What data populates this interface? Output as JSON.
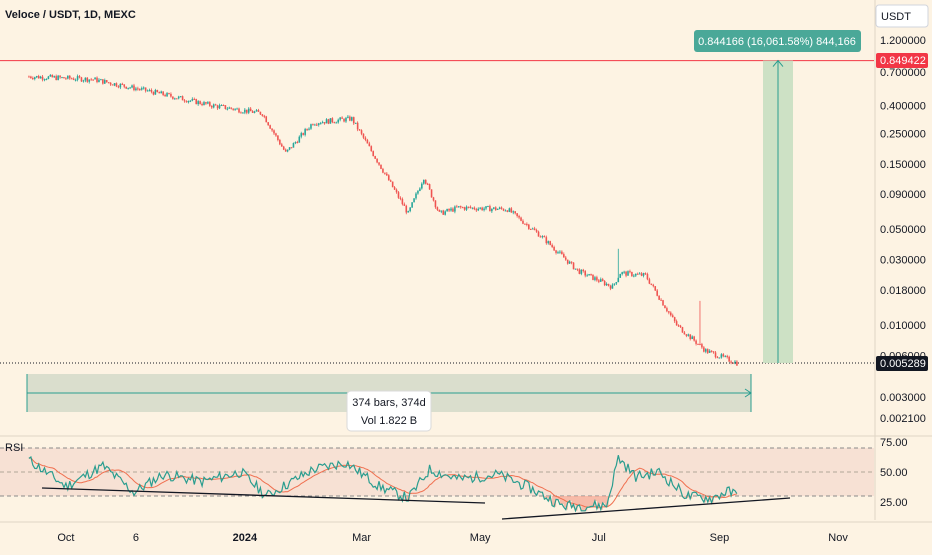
{
  "header": {
    "title": "Veloce / USDT, 1D, MEXC",
    "currency_button": "USDT"
  },
  "colors": {
    "background": "#fdf3e3",
    "up": "#26a69a",
    "down": "#ef5350",
    "hline": "#f23645",
    "measure_fill": "#c8dfc1",
    "measure_line": "#2a9d8f",
    "range_fill": "#d8dccb",
    "rsi": "#2a9d8f",
    "rsi_ma": "#f07050",
    "rsi_band": "#f5dccf",
    "trendline": "#131722"
  },
  "chart_data": [
    {
      "type": "candlestick",
      "title": "Veloce / USDT, 1D, MEXC",
      "scale": "log",
      "ylim": [
        0.0019,
        1.35
      ],
      "y_ticks": [
        "1.200000",
        "0.700000",
        "0.400000",
        "0.250000",
        "0.150000",
        "0.090000",
        "0.050000",
        "0.030000",
        "0.018000",
        "0.010000",
        "0.006000",
        "0.003000",
        "0.002100"
      ],
      "x_ticks": [
        "Oct",
        "6",
        "2024",
        "Mar",
        "May",
        "Jul",
        "Sep",
        "Nov"
      ],
      "price_anchors": [
        {
          "date": "2023-09-12",
          "price": 0.65
        },
        {
          "date": "2023-10-15",
          "price": 0.62
        },
        {
          "date": "2023-11-15",
          "price": 0.5
        },
        {
          "date": "2023-12-15",
          "price": 0.4
        },
        {
          "date": "2024-01-10",
          "price": 0.35
        },
        {
          "date": "2024-01-22",
          "price": 0.18
        },
        {
          "date": "2024-02-05",
          "price": 0.3
        },
        {
          "date": "2024-02-25",
          "price": 0.32
        },
        {
          "date": "2024-03-10",
          "price": 0.15
        },
        {
          "date": "2024-03-25",
          "price": 0.065
        },
        {
          "date": "2024-04-02",
          "price": 0.12
        },
        {
          "date": "2024-04-10",
          "price": 0.065
        },
        {
          "date": "2024-04-20",
          "price": 0.072
        },
        {
          "date": "2024-05-15",
          "price": 0.07
        },
        {
          "date": "2024-06-01",
          "price": 0.045
        },
        {
          "date": "2024-06-20",
          "price": 0.025
        },
        {
          "date": "2024-07-08",
          "price": 0.019
        },
        {
          "date": "2024-07-12",
          "price": 0.024
        },
        {
          "date": "2024-07-25",
          "price": 0.023
        },
        {
          "date": "2024-08-10",
          "price": 0.01
        },
        {
          "date": "2024-08-25",
          "price": 0.0065
        },
        {
          "date": "2024-09-10",
          "price": 0.0053
        }
      ],
      "spikes": [
        {
          "date": "2023-09-11",
          "high": 0.85
        },
        {
          "date": "2024-07-11",
          "high": 0.036
        },
        {
          "date": "2024-08-22",
          "high": 0.015
        }
      ],
      "horizontal_line": {
        "label": "0.849422",
        "value": 0.849422
      },
      "last_price": {
        "label": "0.005289",
        "value": 0.005289
      },
      "measure": {
        "label": "0.844166 (16,061.58%) 844,166"
      },
      "range_stats": {
        "bars": "374 bars, 374d",
        "volume": "Vol 1.822 B"
      }
    },
    {
      "type": "line",
      "name": "RSI",
      "legend": "RSI",
      "ylim": [
        16,
        80
      ],
      "y_ticks": [
        "75.00",
        "50.00",
        "25.00"
      ],
      "band": [
        30,
        70
      ],
      "rsi_anchors": [
        {
          "date": "2023-09-12",
          "value": 60
        },
        {
          "date": "2023-10-01",
          "value": 38
        },
        {
          "date": "2023-10-20",
          "value": 55
        },
        {
          "date": "2023-11-05",
          "value": 33
        },
        {
          "date": "2023-11-20",
          "value": 48
        },
        {
          "date": "2023-12-10",
          "value": 42
        },
        {
          "date": "2023-12-30",
          "value": 50
        },
        {
          "date": "2024-01-12",
          "value": 30
        },
        {
          "date": "2024-02-05",
          "value": 52
        },
        {
          "date": "2024-02-22",
          "value": 58
        },
        {
          "date": "2024-03-10",
          "value": 38
        },
        {
          "date": "2024-03-25",
          "value": 28
        },
        {
          "date": "2024-04-05",
          "value": 52
        },
        {
          "date": "2024-04-20",
          "value": 44
        },
        {
          "date": "2024-05-10",
          "value": 48
        },
        {
          "date": "2024-05-25",
          "value": 38
        },
        {
          "date": "2024-06-12",
          "value": 22
        },
        {
          "date": "2024-07-05",
          "value": 22
        },
        {
          "date": "2024-07-11",
          "value": 62
        },
        {
          "date": "2024-07-20",
          "value": 46
        },
        {
          "date": "2024-08-01",
          "value": 50
        },
        {
          "date": "2024-08-15",
          "value": 30
        },
        {
          "date": "2024-08-28",
          "value": 28
        },
        {
          "date": "2024-09-05",
          "value": 34
        },
        {
          "date": "2024-09-10",
          "value": 31
        }
      ]
    }
  ]
}
